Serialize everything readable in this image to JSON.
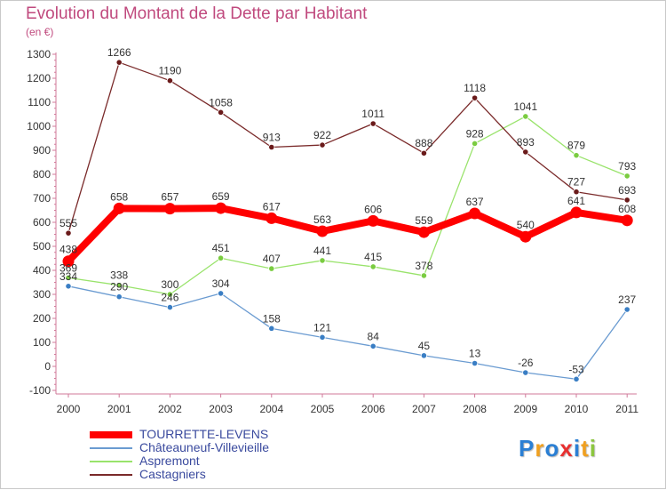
{
  "chart_data": {
    "type": "line",
    "title": "Evolution du Montant de la Dette par Habitant",
    "unit_label": "(en €)",
    "x": [
      "2000",
      "2001",
      "2002",
      "2003",
      "2004",
      "2005",
      "2006",
      "2007",
      "2008",
      "2009",
      "2010",
      "2011"
    ],
    "ylim": [
      -100,
      1300
    ],
    "yticks": [
      -100,
      0,
      100,
      200,
      300,
      400,
      500,
      600,
      700,
      800,
      900,
      1000,
      1100,
      1200,
      1300
    ],
    "grid": false,
    "legend_position": "bottom-left",
    "series": [
      {
        "name": "TOURRETTE-LEVENS",
        "color": "#ff0000",
        "values": [
          438,
          658,
          657,
          659,
          617,
          563,
          606,
          559,
          637,
          540,
          641,
          608
        ]
      },
      {
        "name": "Châteauneuf-Villevieille",
        "color": "#6a9bd1",
        "values": [
          334,
          290,
          246,
          304,
          158,
          121,
          84,
          45,
          13,
          -26,
          -53,
          237
        ]
      },
      {
        "name": "Aspremont",
        "color": "#99e36b",
        "values": [
          369,
          338,
          300,
          451,
          407,
          441,
          415,
          378,
          928,
          1041,
          879,
          793
        ]
      },
      {
        "name": "Castagniers",
        "color": "#7a2a2a",
        "values": [
          555,
          1266,
          1190,
          1058,
          913,
          922,
          1011,
          888,
          1118,
          893,
          727,
          693
        ]
      }
    ]
  },
  "logo": {
    "letters": [
      "P",
      "r",
      "o",
      "x",
      "i",
      "t",
      "i"
    ],
    "colors": [
      "#2a7fd4",
      "#f0a020",
      "#2a7fd4",
      "#e83030",
      "#2a7fd4",
      "#f0a020",
      "#8cc63f"
    ]
  }
}
